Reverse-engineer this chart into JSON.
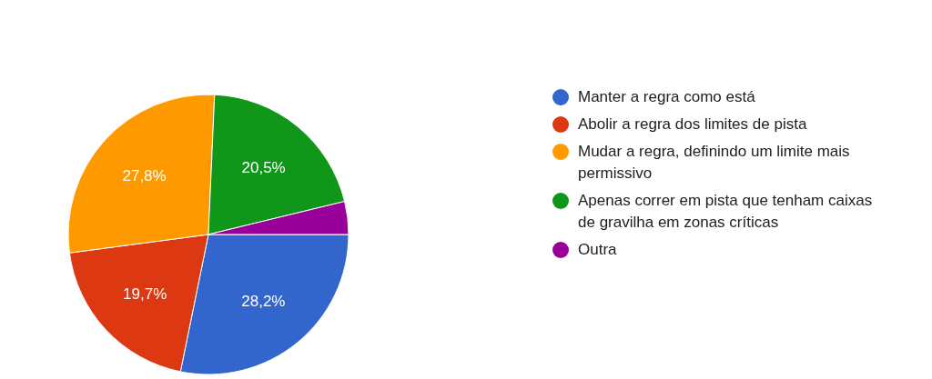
{
  "chart_data": {
    "type": "pie",
    "categories": [
      "Manter a regra como está",
      "Abolir a regra dos limites de pista",
      "Mudar a regra, definindo um limite mais permissivo",
      "Apenas correr em pista que tenham caixas de gravilha em zonas críticas",
      "Outra"
    ],
    "values": [
      28.2,
      19.7,
      27.8,
      20.5,
      3.8
    ],
    "colors": [
      "#3366cc",
      "#dc3912",
      "#ff9900",
      "#109618",
      "#990099"
    ],
    "value_labels": [
      "28,2%",
      "19,7%",
      "27,8%",
      "20,5%",
      null
    ],
    "legend": "right"
  }
}
